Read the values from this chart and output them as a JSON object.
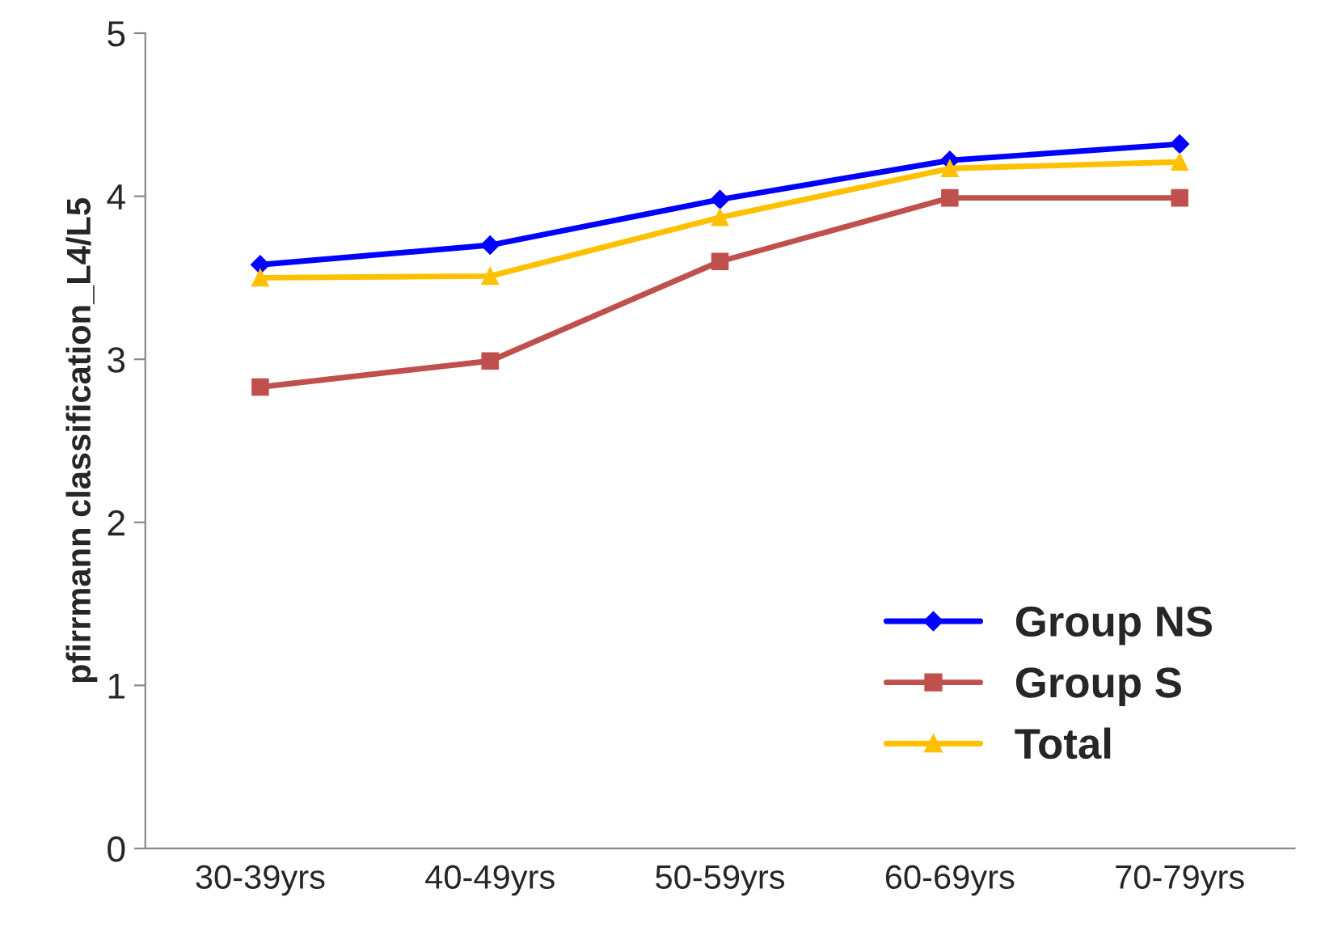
{
  "chart_data": {
    "type": "line",
    "ylabel": "pfirrmann classification_L4/L5",
    "categories": [
      "30-39yrs",
      "40-49yrs",
      "50-59yrs",
      "60-69yrs",
      "70-79yrs"
    ],
    "series": [
      {
        "name": "Group NS",
        "color": "#0000ff",
        "marker": "diamond",
        "values": [
          3.58,
          3.7,
          3.98,
          4.22,
          4.32
        ]
      },
      {
        "name": "Group S",
        "color": "#c0504d",
        "marker": "square",
        "values": [
          2.83,
          2.99,
          3.6,
          3.99,
          3.99
        ]
      },
      {
        "name": "Total",
        "color": "#ffc000",
        "marker": "triangle",
        "values": [
          3.5,
          3.51,
          3.87,
          4.17,
          4.21
        ]
      }
    ],
    "ylim": [
      0,
      5
    ],
    "yticks": [
      0,
      1,
      2,
      3,
      4,
      5
    ],
    "grid": false,
    "legend": "bottom right",
    "line_style": "solid"
  }
}
